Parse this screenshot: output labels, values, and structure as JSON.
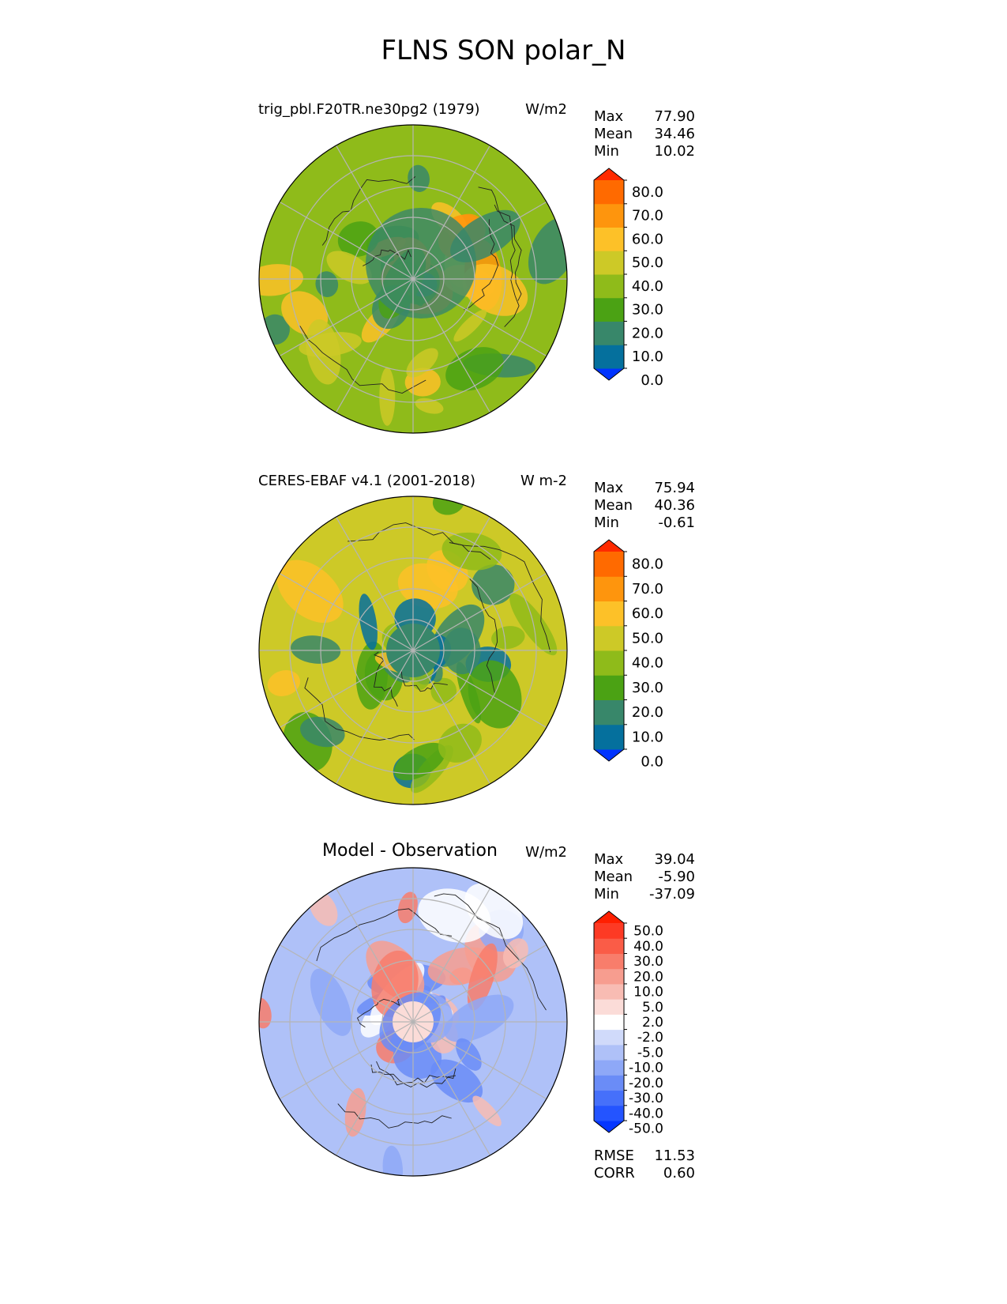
{
  "title": "FLNS SON polar_N",
  "panels": [
    {
      "id": "test",
      "title": "trig_pbl.F20TR.ne30pg2 (1979)",
      "units": "W/m2",
      "stats": [
        {
          "label": "Max",
          "value": "77.90"
        },
        {
          "label": "Mean",
          "value": "34.46"
        },
        {
          "label": "Min",
          "value": "10.02"
        }
      ],
      "colorbar": {
        "labels": [
          "80.0",
          "70.0",
          "60.0",
          "50.0",
          "40.0",
          "30.0",
          "20.0",
          "10.0",
          "0.0"
        ],
        "colors": [
          "#0033ff",
          "#05709d",
          "#38876a",
          "#4ba214",
          "#8fbb1a",
          "#cdc927",
          "#fdc128",
          "#fe950d",
          "#ff6a00",
          "#ff2a00"
        ],
        "base_color": "#8fbb1a",
        "blob_colors": [
          "#38876a",
          "#4ba214",
          "#cdc927",
          "#fdc128",
          "#fe950d"
        ]
      }
    },
    {
      "id": "reference",
      "title": "CERES-EBAF v4.1 (2001-2018)",
      "units": "W m-2",
      "stats": [
        {
          "label": "Max",
          "value": "75.94"
        },
        {
          "label": "Mean",
          "value": "40.36"
        },
        {
          "label": "Min",
          "value": "-0.61"
        }
      ],
      "colorbar": {
        "labels": [
          "80.0",
          "70.0",
          "60.0",
          "50.0",
          "40.0",
          "30.0",
          "20.0",
          "10.0",
          "0.0"
        ],
        "colors": [
          "#0033ff",
          "#05709d",
          "#38876a",
          "#4ba214",
          "#8fbb1a",
          "#cdc927",
          "#fdc128",
          "#fe950d",
          "#ff6a00",
          "#ff2a00"
        ],
        "base_color": "#cdc927",
        "blob_colors": [
          "#8fbb1a",
          "#4ba214",
          "#38876a",
          "#05709d",
          "#fdc128"
        ]
      }
    },
    {
      "id": "diff",
      "title": "Model - Observation",
      "units": "W/m2",
      "stats": [
        {
          "label": "Max",
          "value": "39.04"
        },
        {
          "label": "Mean",
          "value": "-5.90"
        },
        {
          "label": "Min",
          "value": "-37.09"
        }
      ],
      "colorbar": {
        "labels": [
          "50.0",
          "40.0",
          "30.0",
          "20.0",
          "10.0",
          "5.0",
          "2.0",
          "-2.0",
          "-5.0",
          "-10.0",
          "-20.0",
          "-30.0",
          "-40.0",
          "-50.0"
        ],
        "colors": [
          "#0536ff",
          "#2454ff",
          "#4670fa",
          "#6a8cf7",
          "#8ea8f7",
          "#afc1f8",
          "#d0dafa",
          "#ffffff",
          "#fbdcd8",
          "#f8bcb3",
          "#f79d8f",
          "#f87d6b",
          "#fa5c47",
          "#fd3a24",
          "#ff1f00"
        ],
        "base_color": "#afc1f8",
        "blob_colors": [
          "#8ea8f7",
          "#6a8cf7",
          "#f8bcb3",
          "#f79d8f",
          "#ffffff",
          "#f87d6b"
        ]
      },
      "extra_stats": [
        {
          "label": "RMSE",
          "value": "11.53"
        },
        {
          "label": "CORR",
          "value": "0.60"
        }
      ]
    }
  ]
}
